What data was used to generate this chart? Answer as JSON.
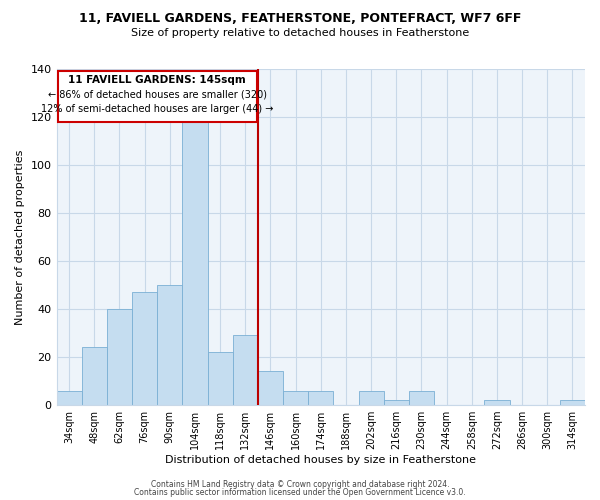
{
  "title_line1": "11, FAVIELL GARDENS, FEATHERSTONE, PONTEFRACT, WF7 6FF",
  "title_line2": "Size of property relative to detached houses in Featherstone",
  "xlabel": "Distribution of detached houses by size in Featherstone",
  "ylabel": "Number of detached properties",
  "bar_labels": [
    "34sqm",
    "48sqm",
    "62sqm",
    "76sqm",
    "90sqm",
    "104sqm",
    "118sqm",
    "132sqm",
    "146sqm",
    "160sqm",
    "174sqm",
    "188sqm",
    "202sqm",
    "216sqm",
    "230sqm",
    "244sqm",
    "258sqm",
    "272sqm",
    "286sqm",
    "300sqm",
    "314sqm"
  ],
  "bar_values": [
    6,
    24,
    40,
    47,
    50,
    118,
    22,
    29,
    14,
    6,
    6,
    0,
    6,
    2,
    6,
    0,
    0,
    2,
    0,
    0,
    2
  ],
  "bar_color": "#c5ddf0",
  "bar_edge_color": "#7aafd4",
  "property_line_label": "11 FAVIELL GARDENS: 145sqm",
  "annotation_line1": "← 86% of detached houses are smaller (320)",
  "annotation_line2": "12% of semi-detached houses are larger (44) →",
  "annotation_box_color": "#ffffff",
  "annotation_box_edge_color": "#cc0000",
  "line_color": "#bb0000",
  "ylim": [
    0,
    140
  ],
  "yticks": [
    0,
    20,
    40,
    60,
    80,
    100,
    120,
    140
  ],
  "footer_line1": "Contains HM Land Registry data © Crown copyright and database right 2024.",
  "footer_line2": "Contains public sector information licensed under the Open Government Licence v3.0.",
  "bg_color": "#ffffff",
  "grid_color": "#c8d8e8",
  "prop_line_index": 8
}
